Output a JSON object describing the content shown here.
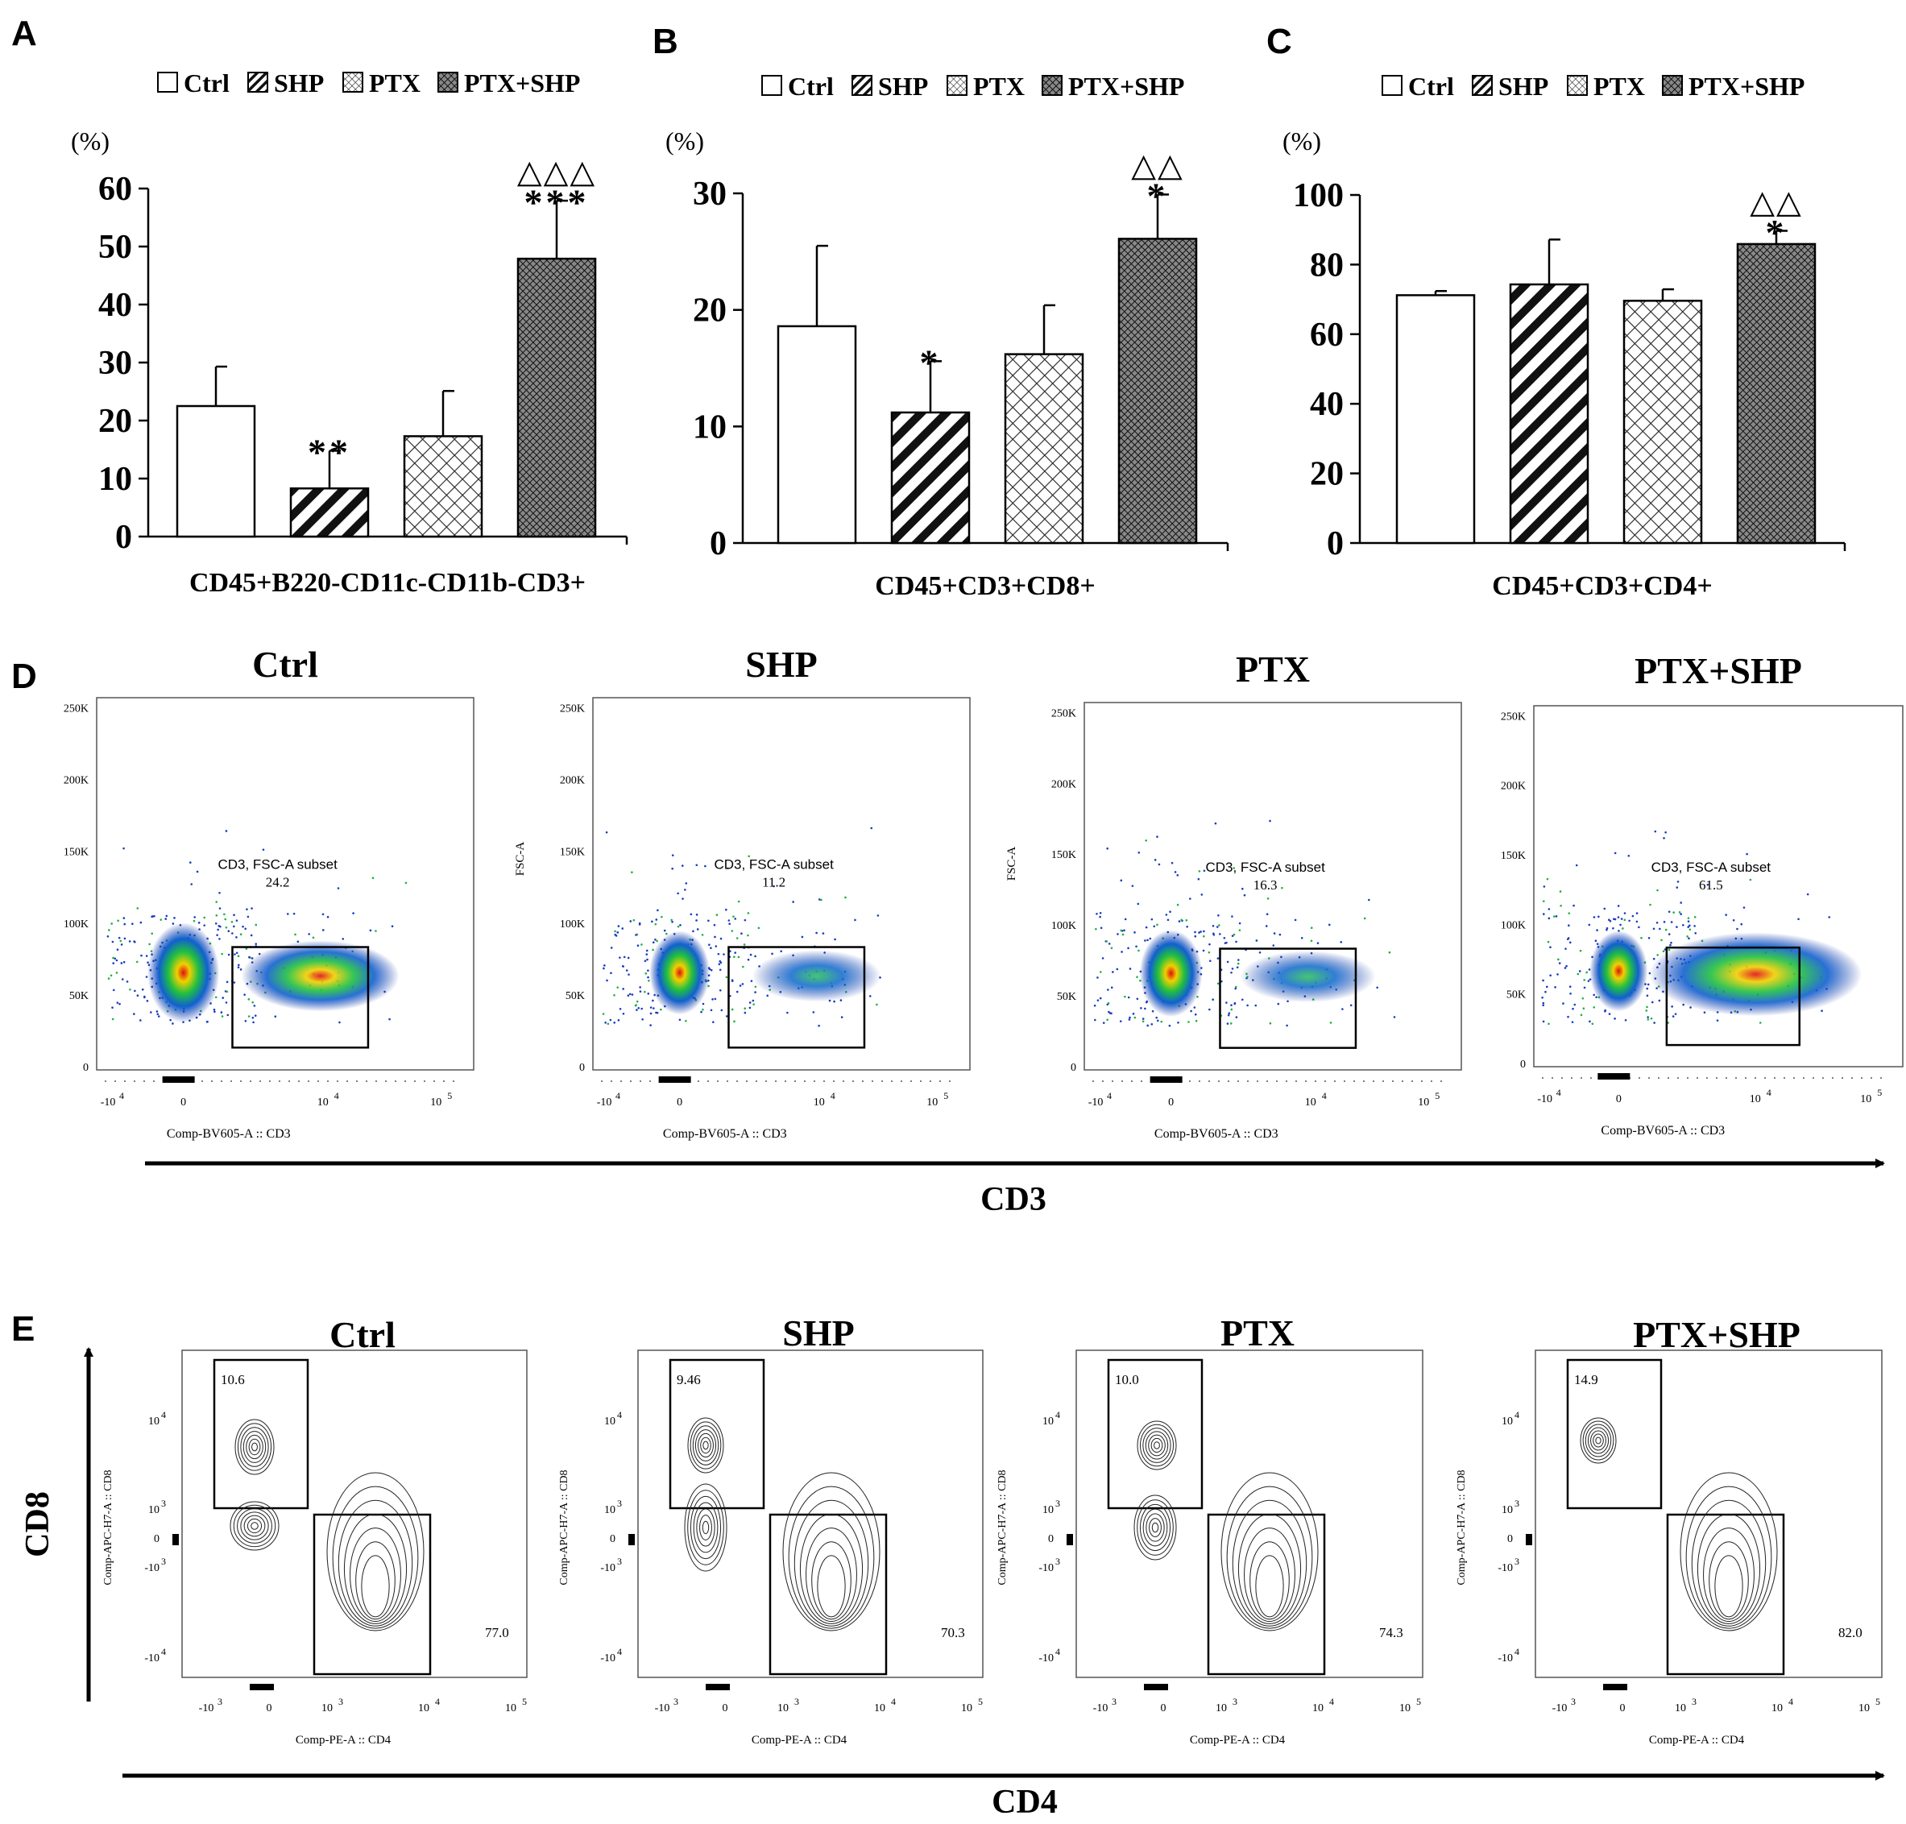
{
  "figure": {
    "panel_letters": [
      "A",
      "B",
      "C",
      "D",
      "E"
    ],
    "legend_labels": [
      "Ctrl",
      "SHP",
      "PTX",
      "PTX+SHP"
    ]
  },
  "chart_data": [
    {
      "type": "bar",
      "panel": "A",
      "categories": [
        "Ctrl",
        "SHP",
        "PTX",
        "PTX+SHP"
      ],
      "values": [
        22.5,
        8.3,
        17.3,
        47.9
      ],
      "errors": [
        6.8,
        6.5,
        7.8,
        10.0
      ],
      "significance": [
        "",
        "**",
        "",
        "***"
      ],
      "significance2": [
        "",
        "",
        "",
        "△△△"
      ],
      "ylabel": "(%)",
      "ylim": [
        0,
        60
      ],
      "yticks": [
        0,
        10,
        20,
        30,
        40,
        50,
        60
      ],
      "xlabel": "CD45+B220-CD11c-CD11b-CD3+"
    },
    {
      "type": "bar",
      "panel": "B",
      "categories": [
        "Ctrl",
        "SHP",
        "PTX",
        "PTX+SHP"
      ],
      "values": [
        18.6,
        11.2,
        16.2,
        26.1
      ],
      "errors": [
        6.9,
        4.4,
        4.2,
        3.8
      ],
      "significance": [
        "",
        "*",
        "",
        "*"
      ],
      "significance2": [
        "",
        "",
        "",
        "△△"
      ],
      "ylabel": "(%)",
      "ylim": [
        0,
        30
      ],
      "yticks": [
        0,
        10,
        20,
        30
      ],
      "xlabel": "CD45+CD3+CD8+"
    },
    {
      "type": "bar",
      "panel": "C",
      "categories": [
        "Ctrl",
        "SHP",
        "PTX",
        "PTX+SHP"
      ],
      "values": [
        71.2,
        74.3,
        69.6,
        85.9
      ],
      "errors": [
        1.2,
        12.9,
        3.3,
        3.8
      ],
      "significance": [
        "",
        "",
        "",
        "*"
      ],
      "significance2": [
        "",
        "",
        "",
        "△△"
      ],
      "ylabel": "(%)",
      "ylim": [
        0,
        100
      ],
      "yticks": [
        0,
        20,
        40,
        60,
        80,
        100
      ],
      "xlabel": "CD45+CD3+CD4+"
    },
    {
      "type": "scatter",
      "panel": "D",
      "title_axis": "CD3",
      "plots": [
        {
          "title": "Ctrl",
          "gate_label": "CD3, FSC-A subset",
          "gate_value": "24.2",
          "ylabel": "",
          "xlabel": "Comp-BV605-A :: CD3"
        },
        {
          "title": "SHP",
          "gate_label": "CD3, FSC-A subset",
          "gate_value": "11.2",
          "ylabel": "FSC-A",
          "xlabel": "Comp-BV605-A :: CD3"
        },
        {
          "title": "PTX",
          "gate_label": "CD3, FSC-A subset",
          "gate_value": "16.3",
          "ylabel": "FSC-A",
          "xlabel": "Comp-BV605-A :: CD3"
        },
        {
          "title": "PTX+SHP",
          "gate_label": "CD3, FSC-A subset",
          "gate_value": "61.5",
          "ylabel": "",
          "xlabel": "Comp-BV605-A :: CD3"
        }
      ],
      "yticks": [
        "0",
        "50K",
        "100K",
        "150K",
        "200K",
        "250K"
      ],
      "xticks": [
        "-10",
        "0",
        "10",
        "10"
      ],
      "xtick_exponents": [
        "4",
        "",
        "4",
        "5"
      ]
    },
    {
      "type": "scatter",
      "panel": "E",
      "x_axis": "CD4",
      "y_axis": "CD8",
      "plots": [
        {
          "title": "Ctrl",
          "cd8_gate": "10.6",
          "cd4_gate": "77.0",
          "ylabel": "Comp-APC-H7-A :: CD8",
          "xlabel": "Comp-PE-A :: CD4"
        },
        {
          "title": "SHP",
          "cd8_gate": "9.46",
          "cd4_gate": "70.3",
          "ylabel": "Comp-APC-H7-A :: CD8",
          "xlabel": "Comp-PE-A :: CD4"
        },
        {
          "title": "PTX",
          "cd8_gate": "10.0",
          "cd4_gate": "74.3",
          "ylabel": "Comp-APC-H7-A :: CD8",
          "xlabel": "Comp-PE-A :: CD4"
        },
        {
          "title": "PTX+SHP",
          "cd8_gate": "14.9",
          "cd4_gate": "82.0",
          "ylabel": "Comp-APC-H7-A :: CD8",
          "xlabel": "Comp-PE-A :: CD4"
        }
      ],
      "yticks": [
        "-10",
        "-10",
        "0",
        "10",
        "10"
      ],
      "ytick_exponents": [
        "4",
        "3",
        "",
        "3",
        "4"
      ],
      "xticks": [
        "-10",
        "0",
        "10",
        "10",
        "10"
      ],
      "xtick_exponents": [
        "3",
        "",
        "3",
        "4",
        "5"
      ]
    }
  ]
}
